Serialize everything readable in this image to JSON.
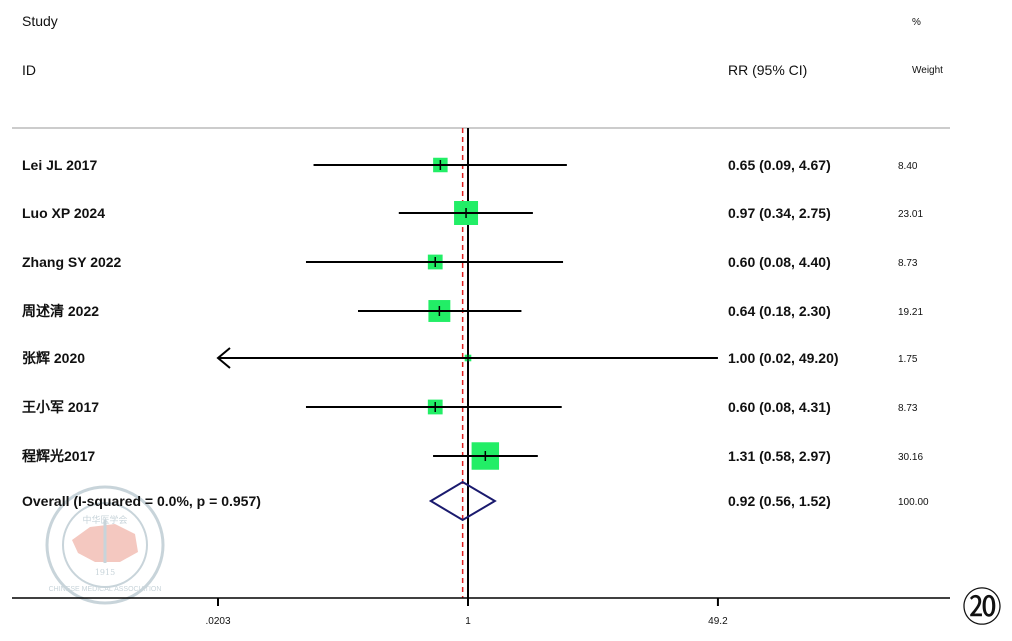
{
  "chart_data": {
    "type": "forest",
    "header": {
      "study": "Study",
      "id": "ID",
      "effect": "RR (95% CI)",
      "weight_pct": "%",
      "weight": "Weight"
    },
    "xscale": "log",
    "xticks": [
      0.0203,
      1,
      49.2
    ],
    "xtick_labels": [
      ".0203",
      "1",
      "49.2"
    ],
    "null_line": 1,
    "pooled_line": 0.92,
    "studies": [
      {
        "id": "Lei JL 2017",
        "rr": 0.65,
        "lo": 0.09,
        "hi": 4.67,
        "ci_text": "0.65 (0.09, 4.67)",
        "weight": "8.40"
      },
      {
        "id": "Luo XP 2024",
        "rr": 0.97,
        "lo": 0.34,
        "hi": 2.75,
        "ci_text": "0.97 (0.34, 2.75)",
        "weight": "23.01"
      },
      {
        "id": "Zhang SY 2022",
        "rr": 0.6,
        "lo": 0.08,
        "hi": 4.4,
        "ci_text": "0.60 (0.08, 4.40)",
        "weight": "8.73"
      },
      {
        "id": "周述清 2022",
        "rr": 0.64,
        "lo": 0.18,
        "hi": 2.3,
        "ci_text": "0.64 (0.18, 2.30)",
        "weight": "19.21"
      },
      {
        "id": "张辉 2020",
        "rr": 1.0,
        "lo": 0.02,
        "hi": 49.2,
        "ci_text": "1.00 (0.02, 49.20)",
        "weight": "1.75"
      },
      {
        "id": "王小军 2017",
        "rr": 0.6,
        "lo": 0.08,
        "hi": 4.31,
        "ci_text": "0.60 (0.08, 4.31)",
        "weight": "8.73"
      },
      {
        "id": "程辉光2017",
        "rr": 1.31,
        "lo": 0.58,
        "hi": 2.97,
        "ci_text": "1.31 (0.58, 2.97)",
        "weight": "30.16"
      }
    ],
    "overall": {
      "label": "Overall  (I-squared = 0.0%, p = 0.957)",
      "rr": 0.92,
      "lo": 0.56,
      "hi": 1.52,
      "ci_text": "0.92 (0.56, 1.52)",
      "weight": "100.00"
    },
    "colors": {
      "box": "#22ee66",
      "diamond": "#1a1a6e",
      "pooled": "#e02020",
      "seal": "#c8d4da",
      "seal_map": "#f4c8c0"
    }
  },
  "watermark": {
    "text": "CHINESE MEDICAL ASSOCIATION",
    "year": "1915",
    "chinese": "中华医学会"
  },
  "page_number": "⑳"
}
